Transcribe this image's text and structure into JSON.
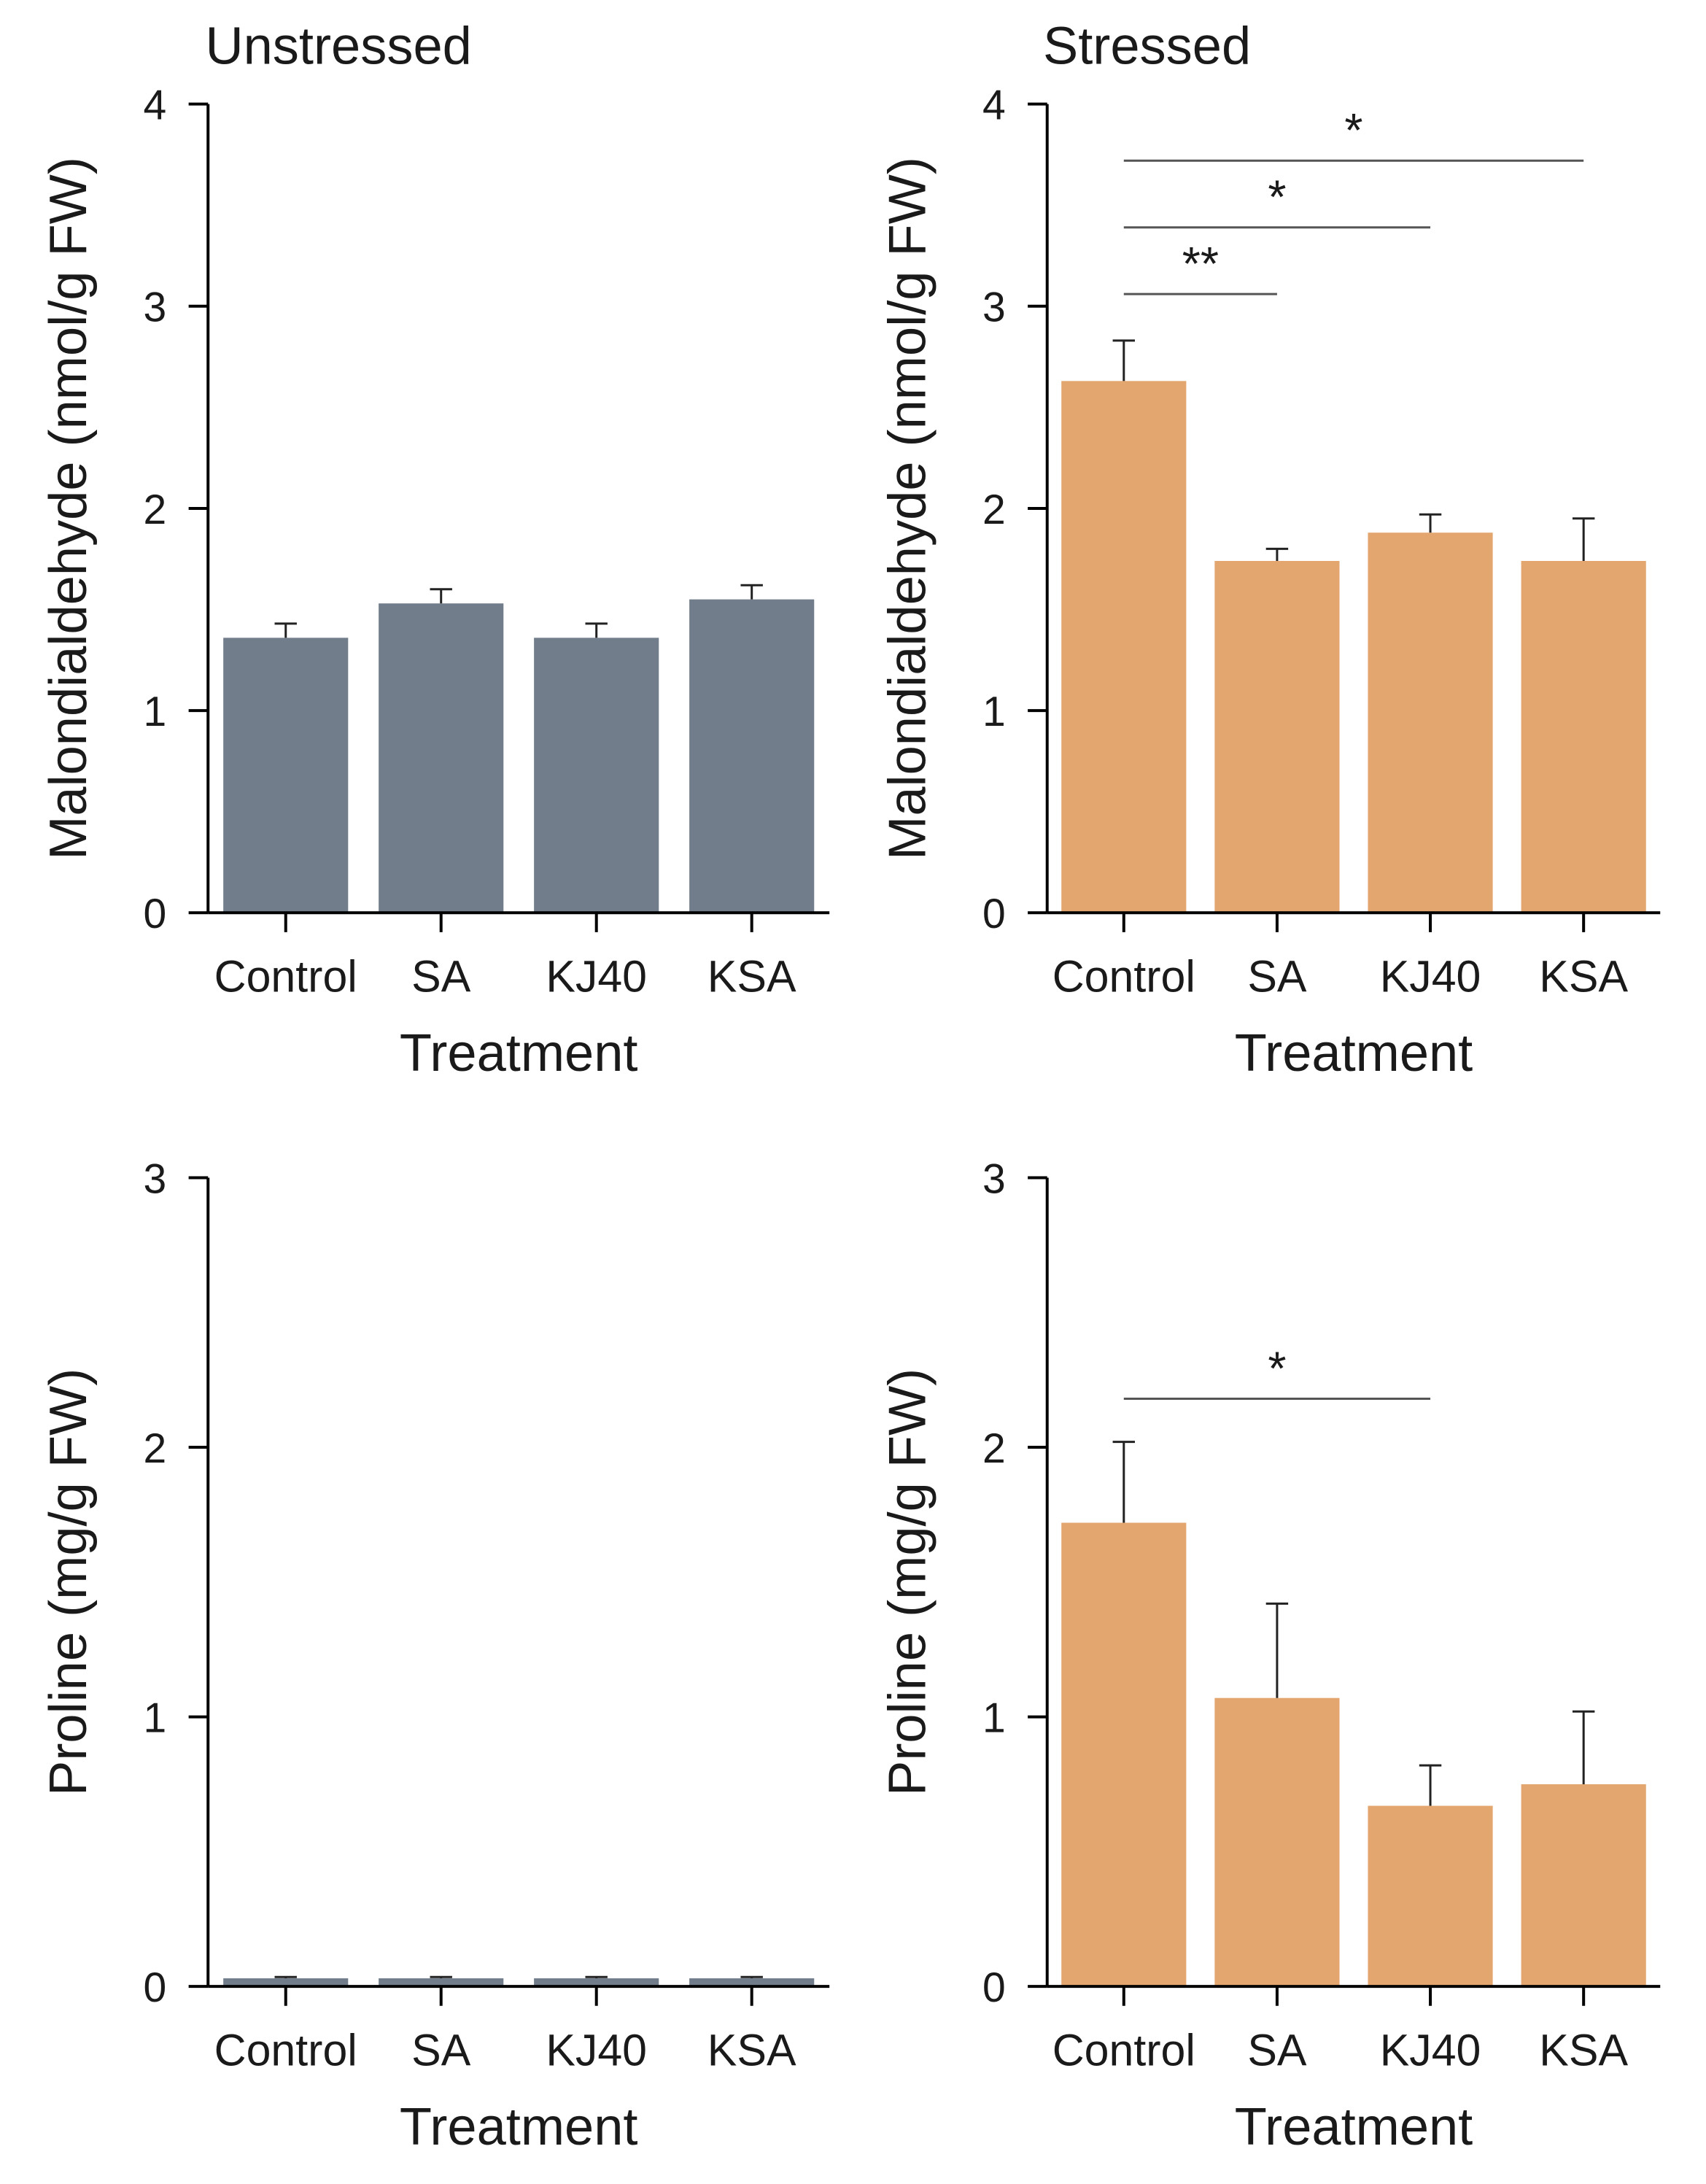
{
  "colors": {
    "unstressed": "#717d8b",
    "stressed": "#e3a66e",
    "axis": "#000000",
    "bracket": "#555555"
  },
  "chart_data": [
    {
      "id": "mda-unstressed",
      "type": "bar",
      "title": "Unstressed",
      "xlabel": "Treatment",
      "ylabel": "Malondialdehyde (nmol/g FW)",
      "categories": [
        "Control",
        "SA",
        "KJ40",
        "KSA"
      ],
      "values": [
        1.36,
        1.53,
        1.36,
        1.55
      ],
      "errors": [
        0.07,
        0.07,
        0.07,
        0.07
      ],
      "ylim": [
        0,
        4
      ],
      "yticks": [
        0,
        1,
        2,
        3,
        4
      ],
      "color": "#717d8b",
      "significance": []
    },
    {
      "id": "mda-stressed",
      "type": "bar",
      "title": "Stressed",
      "xlabel": "Treatment",
      "ylabel": "Malondialdehyde (nmol/g FW)",
      "categories": [
        "Control",
        "SA",
        "KJ40",
        "KSA"
      ],
      "values": [
        2.63,
        1.74,
        1.88,
        1.74
      ],
      "errors": [
        0.2,
        0.06,
        0.09,
        0.21
      ],
      "ylim": [
        0,
        4
      ],
      "yticks": [
        0,
        1,
        2,
        3,
        4
      ],
      "color": "#e3a66e",
      "significance": [
        {
          "from": 0,
          "to": 1,
          "y": 3.06,
          "label": "**"
        },
        {
          "from": 0,
          "to": 2,
          "y": 3.39,
          "label": "*"
        },
        {
          "from": 0,
          "to": 3,
          "y": 3.72,
          "label": "*"
        }
      ]
    },
    {
      "id": "proline-unstressed",
      "type": "bar",
      "title": "",
      "xlabel": "Treatment",
      "ylabel": "Proline (mg/g FW)",
      "categories": [
        "Control",
        "SA",
        "KJ40",
        "KSA"
      ],
      "values": [
        0.03,
        0.03,
        0.03,
        0.03
      ],
      "errors": [
        0.005,
        0.005,
        0.005,
        0.005
      ],
      "ylim": [
        0,
        3
      ],
      "yticks": [
        0,
        1,
        2,
        3
      ],
      "color": "#717d8b",
      "significance": []
    },
    {
      "id": "proline-stressed",
      "type": "bar",
      "title": "",
      "xlabel": "Treatment",
      "ylabel": "Proline (mg/g FW)",
      "categories": [
        "Control",
        "SA",
        "KJ40",
        "KSA"
      ],
      "values": [
        1.72,
        1.07,
        0.67,
        0.75
      ],
      "errors": [
        0.3,
        0.35,
        0.15,
        0.27
      ],
      "ylim": [
        0,
        3
      ],
      "yticks": [
        0,
        1,
        2,
        3
      ],
      "color": "#e3a66e",
      "significance": [
        {
          "from": 0,
          "to": 2,
          "y": 2.18,
          "label": "*"
        }
      ]
    }
  ]
}
